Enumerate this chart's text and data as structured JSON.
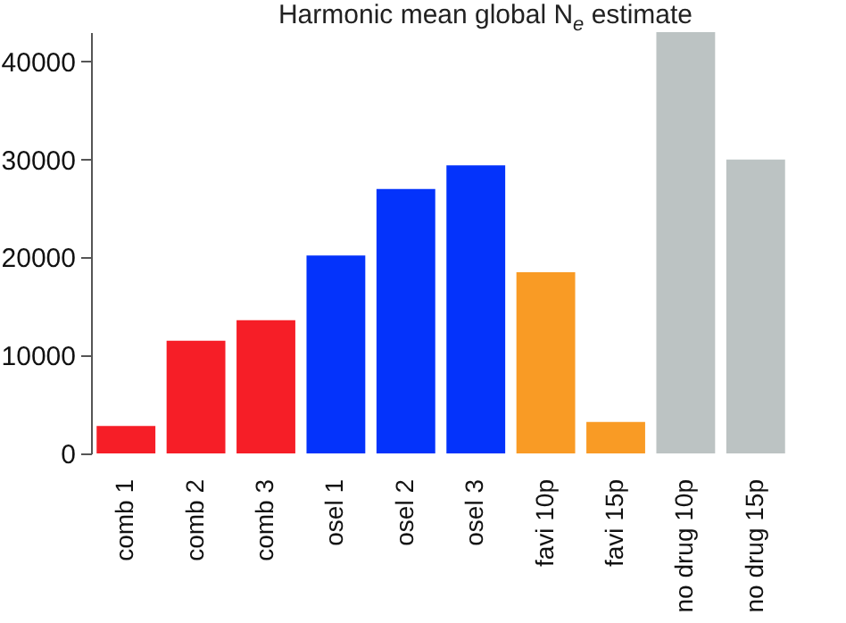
{
  "chart_data": {
    "type": "bar",
    "title": "Harmonic mean global N$_{e}$ estimate",
    "categories": [
      "comb 1",
      "comb 2",
      "comb 3",
      "osel 1",
      "osel 2",
      "osel 3",
      "favi 10p",
      "favi 15p",
      "no drug 10p",
      "no drug 15p"
    ],
    "values": [
      2800,
      11500,
      13600,
      20200,
      27000,
      29400,
      18500,
      3200,
      43000,
      30000
    ],
    "colors": [
      "#f61e27",
      "#f61e27",
      "#f61e27",
      "#0433fb",
      "#0433fb",
      "#0433fb",
      "#f99b25",
      "#f99b25",
      "#bcc3c3",
      "#bcc3c3"
    ],
    "ylim": [
      0,
      43000
    ],
    "yticks": [
      0,
      10000,
      20000,
      30000,
      40000
    ],
    "grid": false
  }
}
